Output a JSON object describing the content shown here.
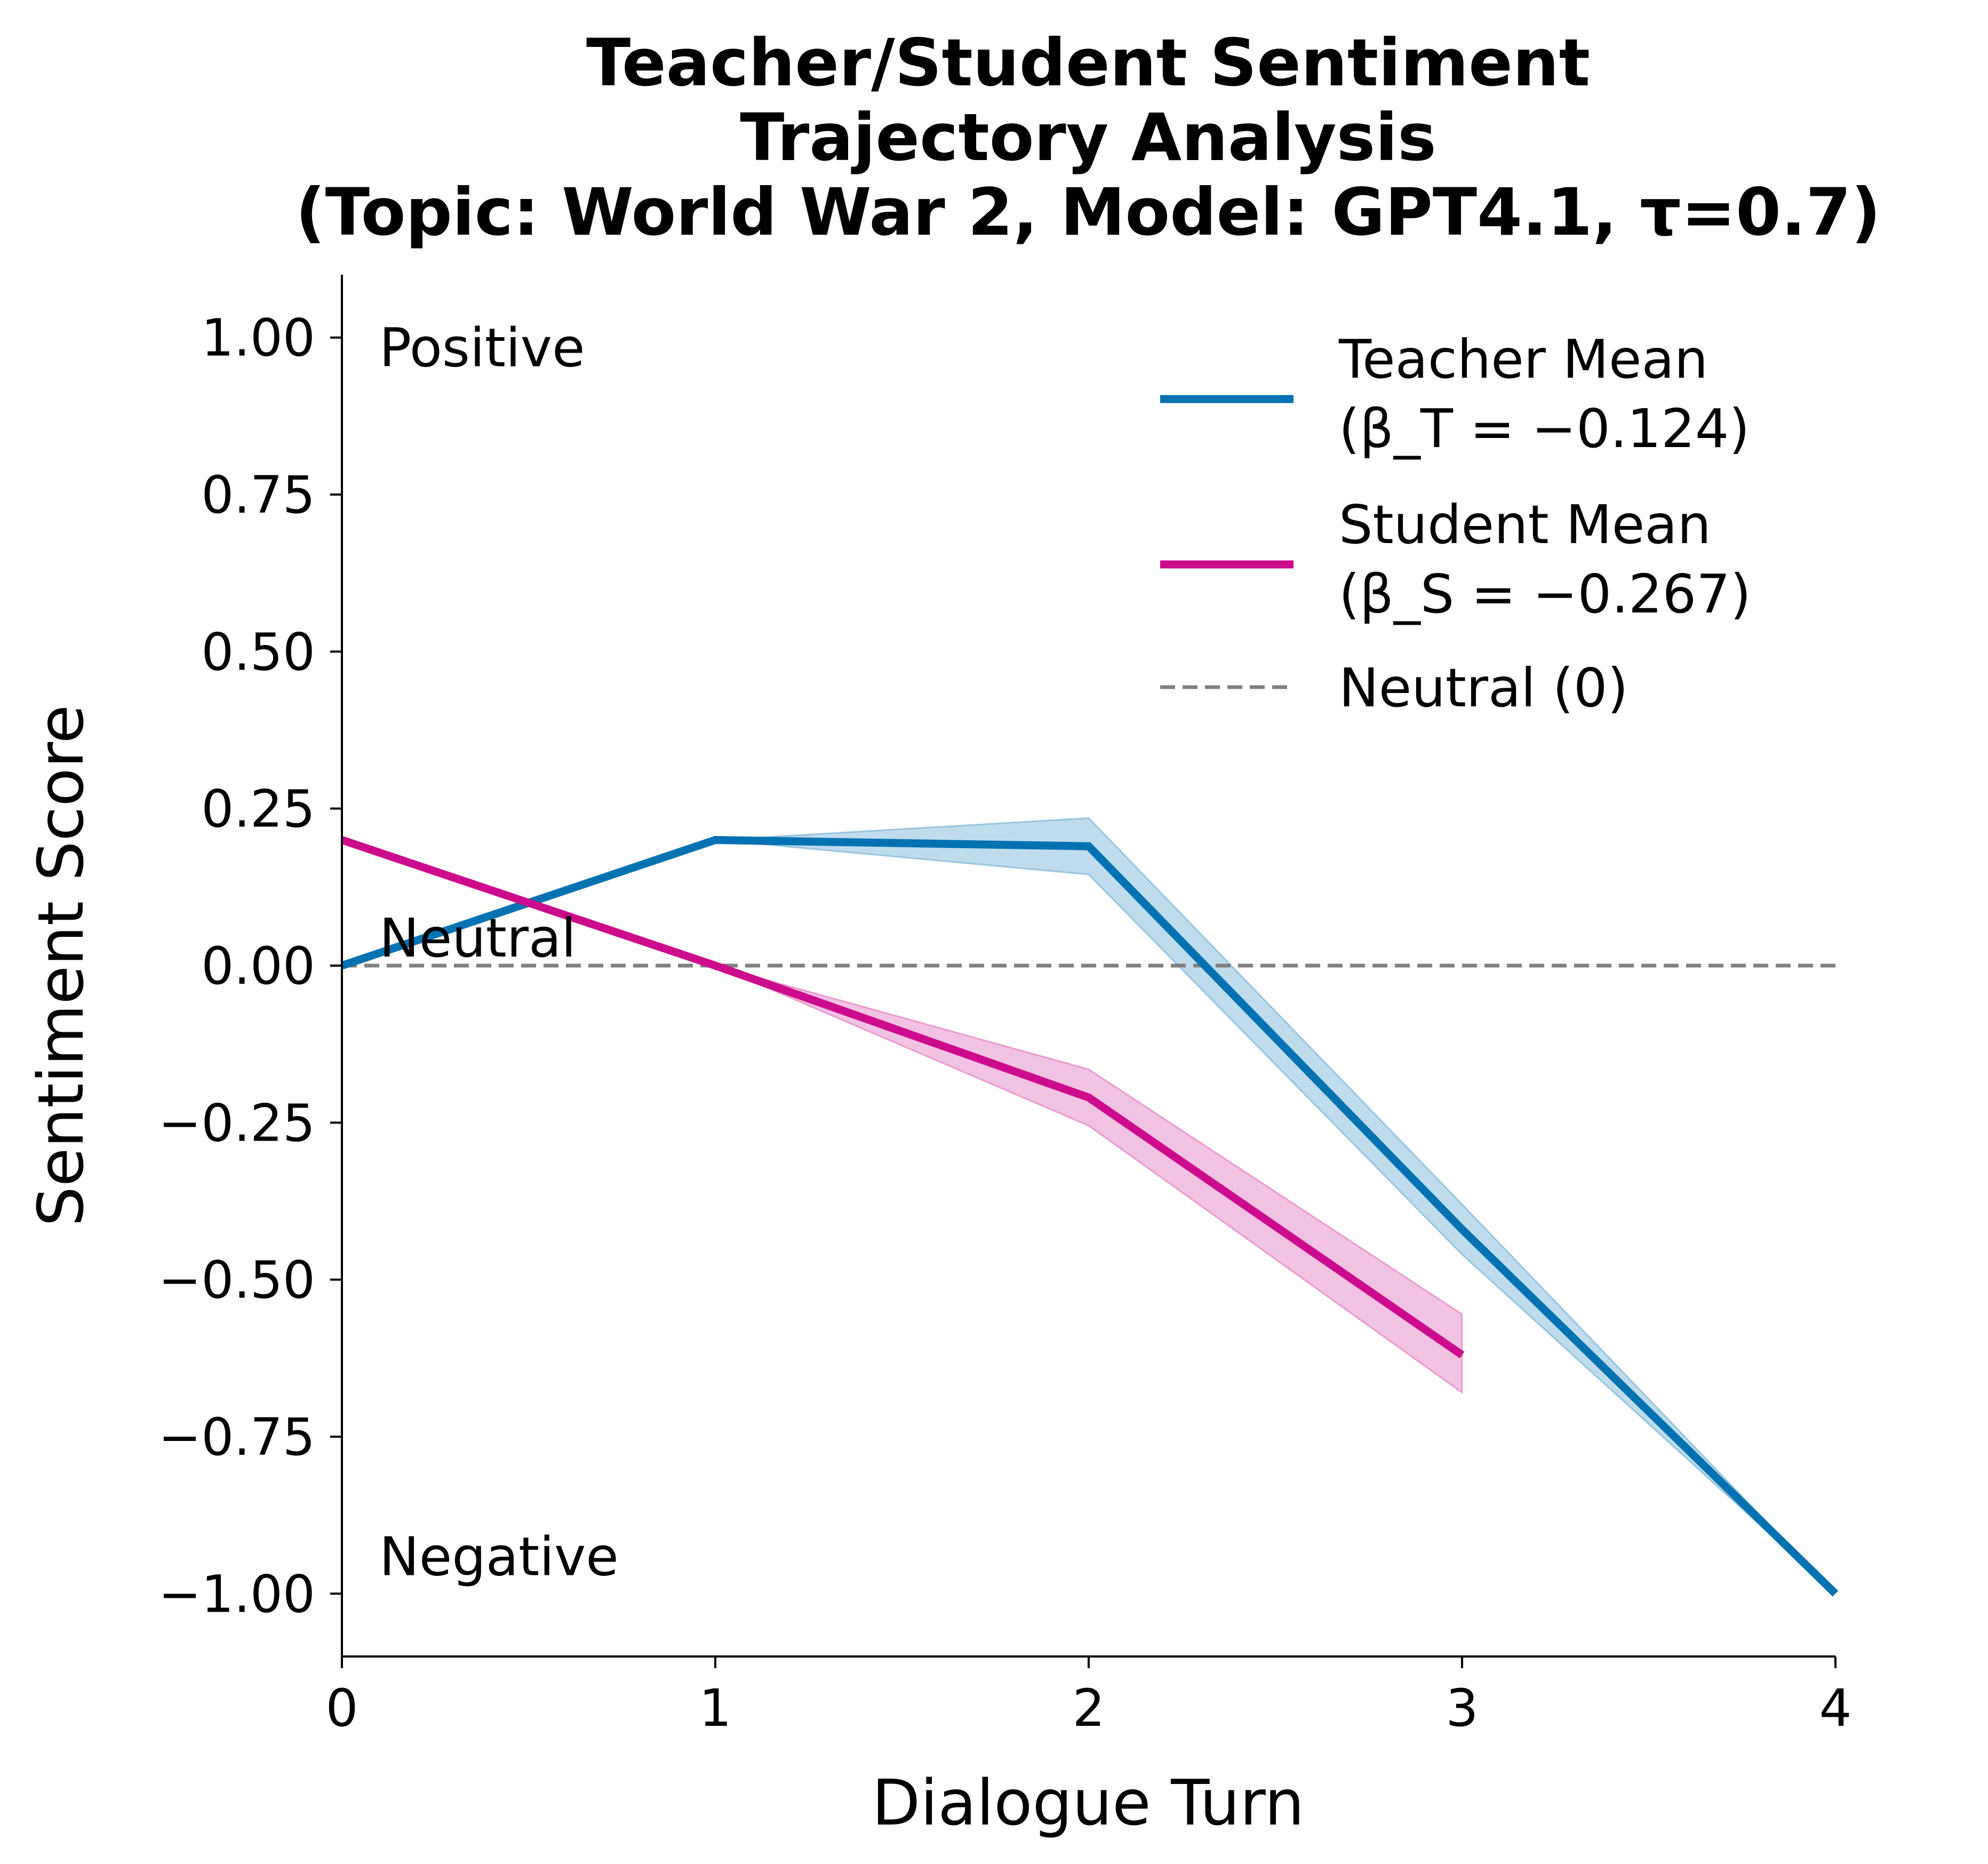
{
  "chart_data": {
    "type": "line",
    "title_lines": [
      "Teacher/Student Sentiment",
      "Trajectory Analysis",
      "(Topic: World War 2, Model: GPT4.1, τ=0.7)"
    ],
    "xlabel": "Dialogue Turn",
    "ylabel": "Sentiment Score",
    "xlim": [
      0,
      4
    ],
    "ylim": [
      -1.1,
      1.1
    ],
    "x_ticks": [
      0,
      1,
      2,
      3,
      4
    ],
    "y_ticks": [
      1.0,
      0.75,
      0.5,
      0.25,
      0.0,
      -0.25,
      -0.5,
      -0.75,
      -1.0
    ],
    "y_tick_labels": [
      "1.00",
      "0.75",
      "0.50",
      "0.25",
      "0.00",
      "−0.25",
      "−0.50",
      "−0.75",
      "−1.00"
    ],
    "x_tick_labels": [
      "0",
      "1",
      "2",
      "3",
      "4"
    ],
    "grid": false,
    "legend_position": "top-right",
    "annotations": [
      {
        "text": "Positive",
        "x": 0.1,
        "y": 0.985
      },
      {
        "text": "Neutral",
        "x": 0.1,
        "y": 0.045
      },
      {
        "text": "Negative",
        "x": 0.1,
        "y": -0.94
      }
    ],
    "series": [
      {
        "name_lines": [
          "Teacher Mean",
          "(β_T = −0.124)"
        ],
        "color": "#0072B2",
        "x": [
          0,
          1,
          2,
          3,
          4
        ],
        "y": [
          0.0,
          0.2,
          0.19,
          -0.42,
          -1.0
        ],
        "y_lower": [
          0.0,
          0.2,
          0.145,
          -0.46,
          -1.0
        ],
        "y_upper": [
          0.0,
          0.2,
          0.235,
          -0.38,
          -1.0
        ]
      },
      {
        "name_lines": [
          "Student Mean",
          "(β_S = −0.267)"
        ],
        "color": "#CC0C8C",
        "x": [
          0,
          1,
          2,
          3
        ],
        "y": [
          0.2,
          0.0,
          -0.21,
          -0.62
        ],
        "y_lower": [
          0.2,
          0.0,
          -0.255,
          -0.68
        ],
        "y_upper": [
          0.2,
          0.0,
          -0.165,
          -0.555
        ]
      }
    ],
    "reference_line": {
      "name": "Neutral (0)",
      "y": 0.0,
      "color": "#808080",
      "style": "dashed"
    }
  }
}
